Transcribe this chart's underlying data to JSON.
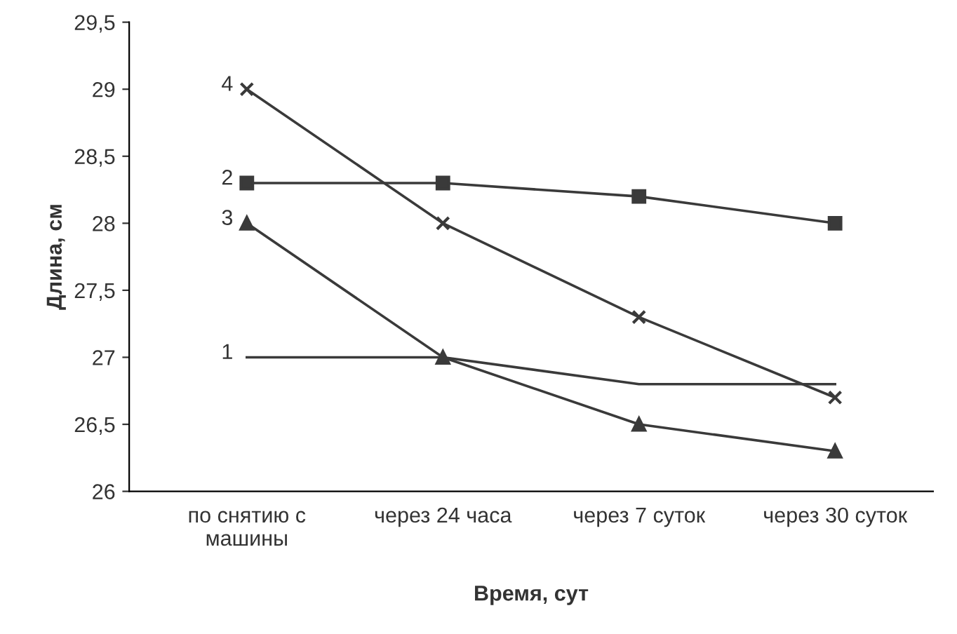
{
  "chart_data": {
    "type": "line",
    "xlabel": "Время, сут",
    "ylabel": "Длина, см",
    "categories": [
      "по снятию с\nмашины",
      "через 24 часа",
      "через 7 суток",
      "через 30 суток"
    ],
    "ylim": [
      26,
      29.5
    ],
    "yticks": [
      {
        "value": 26,
        "label": "26"
      },
      {
        "value": 26.5,
        "label": "26,5"
      },
      {
        "value": 27,
        "label": "27"
      },
      {
        "value": 27.5,
        "label": "27,5"
      },
      {
        "value": 28,
        "label": "28"
      },
      {
        "value": 28.5,
        "label": "28,5"
      },
      {
        "value": 29,
        "label": "29"
      },
      {
        "value": 29.5,
        "label": "29,5"
      }
    ],
    "grid": false,
    "legend": false,
    "series": [
      {
        "name": "1",
        "color": "#3a3a3a",
        "marker": "none",
        "values": [
          27,
          27,
          26.8,
          26.8
        ]
      },
      {
        "name": "2",
        "color": "#3a3a3a",
        "marker": "square",
        "values": [
          28.3,
          28.3,
          28.2,
          28.0
        ]
      },
      {
        "name": "3",
        "color": "#3a3a3a",
        "marker": "triangle",
        "values": [
          28.0,
          27.0,
          26.5,
          26.3
        ]
      },
      {
        "name": "4",
        "color": "#3a3a3a",
        "marker": "cross",
        "values": [
          29.0,
          28.0,
          27.3,
          26.7
        ]
      }
    ]
  }
}
